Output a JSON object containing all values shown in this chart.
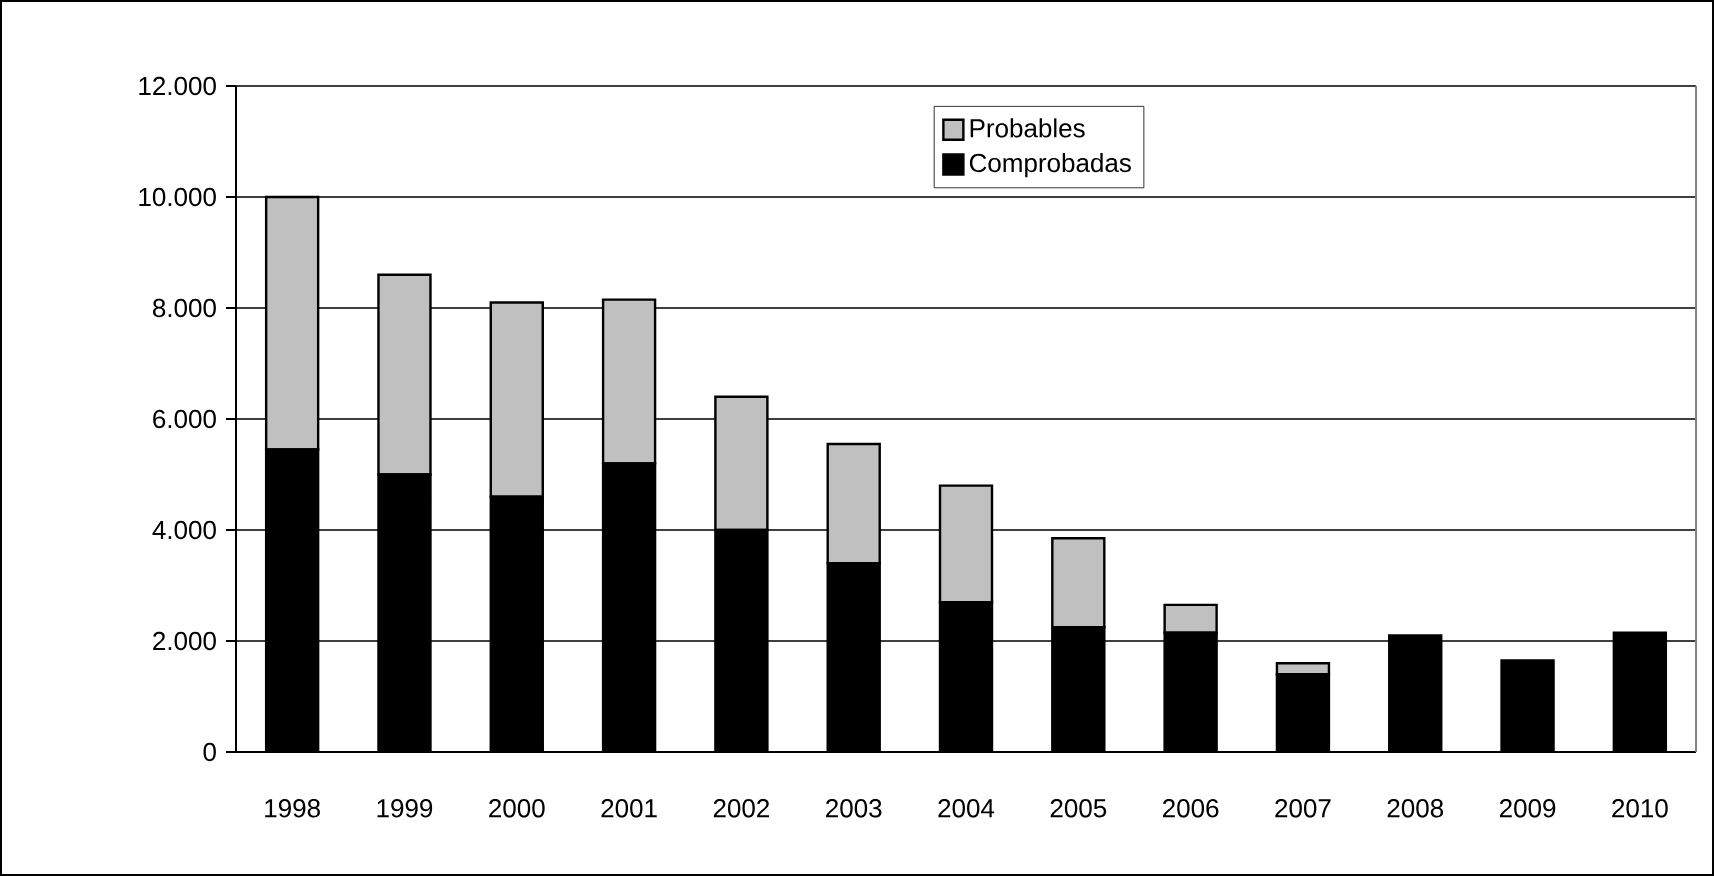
{
  "chart_data": {
    "type": "bar",
    "stacked": true,
    "categories": [
      "1998",
      "1999",
      "2000",
      "2001",
      "2002",
      "2003",
      "2004",
      "2005",
      "2006",
      "2007",
      "2008",
      "2009",
      "2010"
    ],
    "series": [
      {
        "name": "Comprobadas",
        "color": "#000000",
        "values": [
          5450,
          5000,
          4600,
          5200,
          4000,
          3400,
          2700,
          2250,
          2150,
          1400,
          2100,
          1650,
          2150
        ]
      },
      {
        "name": "Probables",
        "color": "#c0c0c0",
        "values": [
          4550,
          3600,
          3500,
          2950,
          2400,
          2150,
          2100,
          1600,
          500,
          200,
          0,
          0,
          0
        ]
      }
    ],
    "ylim": [
      0,
      12000
    ],
    "yticks": [
      {
        "value": 0,
        "label": "0"
      },
      {
        "value": 2000,
        "label": "2.000"
      },
      {
        "value": 4000,
        "label": "4.000"
      },
      {
        "value": 6000,
        "label": "6.000"
      },
      {
        "value": 8000,
        "label": "8.000"
      },
      {
        "value": 10000,
        "label": "10.000"
      },
      {
        "value": 12000,
        "label": "12.000"
      }
    ],
    "grid": "y",
    "legend": "top"
  }
}
